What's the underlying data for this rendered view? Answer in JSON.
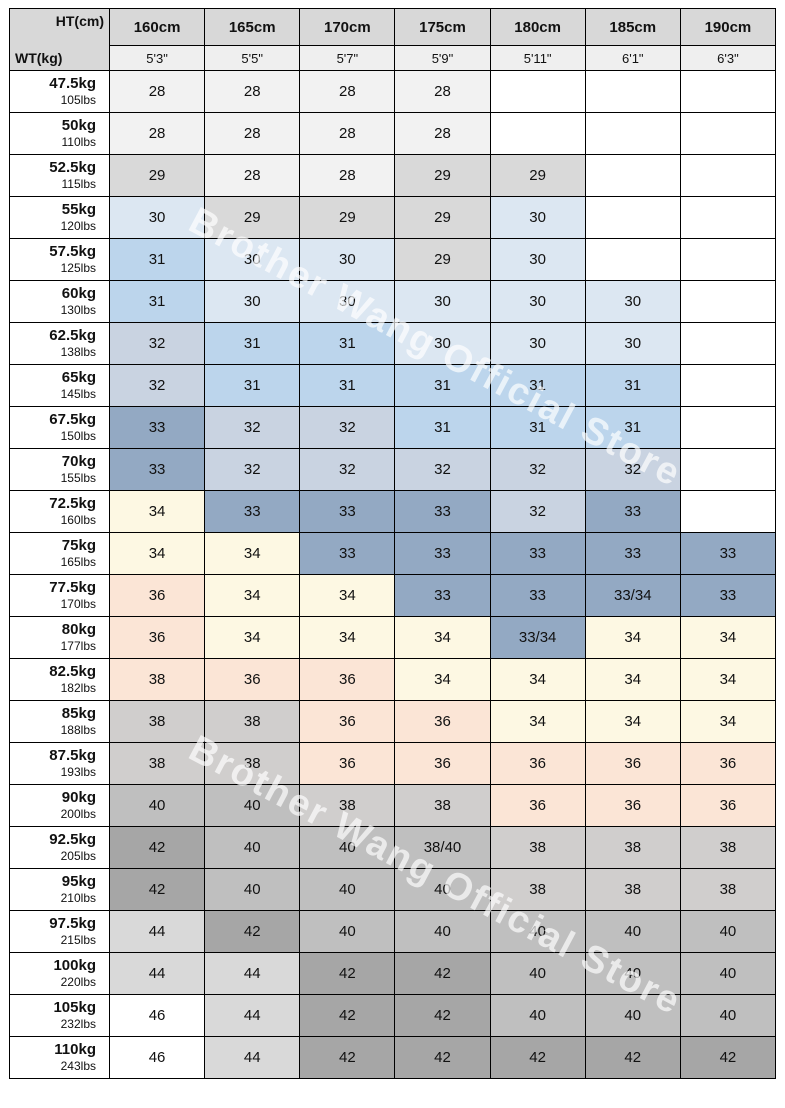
{
  "watermark": {
    "text": "Brother Wang Official Store"
  },
  "chart_data": {
    "type": "table",
    "corner": {
      "col_axis_label": "HT(cm)",
      "row_axis_label": "WT(kg)"
    },
    "columns": [
      {
        "cm": "160cm",
        "ft": "5'3\""
      },
      {
        "cm": "165cm",
        "ft": "5'5\""
      },
      {
        "cm": "170cm",
        "ft": "5'7\""
      },
      {
        "cm": "175cm",
        "ft": "5'9\""
      },
      {
        "cm": "180cm",
        "ft": "5'11\""
      },
      {
        "cm": "185cm",
        "ft": "6'1\""
      },
      {
        "cm": "190cm",
        "ft": "6'3\""
      }
    ],
    "rows": [
      {
        "kg": "47.5kg",
        "lbs": "105lbs",
        "cells": [
          {
            "v": "28",
            "bg": "#f2f2f2"
          },
          {
            "v": "28",
            "bg": "#f2f2f2"
          },
          {
            "v": "28",
            "bg": "#f2f2f2"
          },
          {
            "v": "28",
            "bg": "#f2f2f2"
          },
          {
            "v": "",
            "bg": "#ffffff"
          },
          {
            "v": "",
            "bg": "#ffffff"
          },
          {
            "v": "",
            "bg": "#ffffff"
          }
        ]
      },
      {
        "kg": "50kg",
        "lbs": "110lbs",
        "cells": [
          {
            "v": "28",
            "bg": "#f2f2f2"
          },
          {
            "v": "28",
            "bg": "#f2f2f2"
          },
          {
            "v": "28",
            "bg": "#f2f2f2"
          },
          {
            "v": "28",
            "bg": "#f2f2f2"
          },
          {
            "v": "",
            "bg": "#ffffff"
          },
          {
            "v": "",
            "bg": "#ffffff"
          },
          {
            "v": "",
            "bg": "#ffffff"
          }
        ]
      },
      {
        "kg": "52.5kg",
        "lbs": "115lbs",
        "cells": [
          {
            "v": "29",
            "bg": "#d9d9d9"
          },
          {
            "v": "28",
            "bg": "#f2f2f2"
          },
          {
            "v": "28",
            "bg": "#f2f2f2"
          },
          {
            "v": "29",
            "bg": "#d9d9d9"
          },
          {
            "v": "29",
            "bg": "#d9d9d9"
          },
          {
            "v": "",
            "bg": "#ffffff"
          },
          {
            "v": "",
            "bg": "#ffffff"
          }
        ]
      },
      {
        "kg": "55kg",
        "lbs": "120lbs",
        "cells": [
          {
            "v": "30",
            "bg": "#dce7f2"
          },
          {
            "v": "29",
            "bg": "#d9d9d9"
          },
          {
            "v": "29",
            "bg": "#d9d9d9"
          },
          {
            "v": "29",
            "bg": "#d9d9d9"
          },
          {
            "v": "30",
            "bg": "#dce7f2"
          },
          {
            "v": "",
            "bg": "#ffffff"
          },
          {
            "v": "",
            "bg": "#ffffff"
          }
        ]
      },
      {
        "kg": "57.5kg",
        "lbs": "125lbs",
        "cells": [
          {
            "v": "31",
            "bg": "#bcd5ec"
          },
          {
            "v": "30",
            "bg": "#dce7f2"
          },
          {
            "v": "30",
            "bg": "#dce7f2"
          },
          {
            "v": "29",
            "bg": "#d9d9d9"
          },
          {
            "v": "30",
            "bg": "#dce7f2"
          },
          {
            "v": "",
            "bg": "#ffffff"
          },
          {
            "v": "",
            "bg": "#ffffff"
          }
        ]
      },
      {
        "kg": "60kg",
        "lbs": "130lbs",
        "cells": [
          {
            "v": "31",
            "bg": "#bcd5ec"
          },
          {
            "v": "30",
            "bg": "#dce7f2"
          },
          {
            "v": "30",
            "bg": "#dce7f2"
          },
          {
            "v": "30",
            "bg": "#dce7f2"
          },
          {
            "v": "30",
            "bg": "#dce7f2"
          },
          {
            "v": "30",
            "bg": "#dce7f2"
          },
          {
            "v": "",
            "bg": "#ffffff"
          }
        ]
      },
      {
        "kg": "62.5kg",
        "lbs": "138lbs",
        "cells": [
          {
            "v": "32",
            "bg": "#c9d3e1"
          },
          {
            "v": "31",
            "bg": "#bcd5ec"
          },
          {
            "v": "31",
            "bg": "#bcd5ec"
          },
          {
            "v": "30",
            "bg": "#dce7f2"
          },
          {
            "v": "30",
            "bg": "#dce7f2"
          },
          {
            "v": "30",
            "bg": "#dce7f2"
          },
          {
            "v": "",
            "bg": "#ffffff"
          }
        ]
      },
      {
        "kg": "65kg",
        "lbs": "145lbs",
        "cells": [
          {
            "v": "32",
            "bg": "#c9d3e1"
          },
          {
            "v": "31",
            "bg": "#bcd5ec"
          },
          {
            "v": "31",
            "bg": "#bcd5ec"
          },
          {
            "v": "31",
            "bg": "#bcd5ec"
          },
          {
            "v": "31",
            "bg": "#bcd5ec"
          },
          {
            "v": "31",
            "bg": "#bcd5ec"
          },
          {
            "v": "",
            "bg": "#ffffff"
          }
        ]
      },
      {
        "kg": "67.5kg",
        "lbs": "150lbs",
        "cells": [
          {
            "v": "33",
            "bg": "#93a9c3"
          },
          {
            "v": "32",
            "bg": "#c9d3e1"
          },
          {
            "v": "32",
            "bg": "#c9d3e1"
          },
          {
            "v": "31",
            "bg": "#bcd5ec"
          },
          {
            "v": "31",
            "bg": "#bcd5ec"
          },
          {
            "v": "31",
            "bg": "#bcd5ec"
          },
          {
            "v": "",
            "bg": "#ffffff"
          }
        ]
      },
      {
        "kg": "70kg",
        "lbs": "155lbs",
        "cells": [
          {
            "v": "33",
            "bg": "#93a9c3"
          },
          {
            "v": "32",
            "bg": "#c9d3e1"
          },
          {
            "v": "32",
            "bg": "#c9d3e1"
          },
          {
            "v": "32",
            "bg": "#c9d3e1"
          },
          {
            "v": "32",
            "bg": "#c9d3e1"
          },
          {
            "v": "32",
            "bg": "#c9d3e1"
          },
          {
            "v": "",
            "bg": "#ffffff"
          }
        ]
      },
      {
        "kg": "72.5kg",
        "lbs": "160lbs",
        "cells": [
          {
            "v": "34",
            "bg": "#fdf8e3"
          },
          {
            "v": "33",
            "bg": "#93a9c3"
          },
          {
            "v": "33",
            "bg": "#93a9c3"
          },
          {
            "v": "33",
            "bg": "#93a9c3"
          },
          {
            "v": "32",
            "bg": "#c9d3e1"
          },
          {
            "v": "33",
            "bg": "#93a9c3"
          },
          {
            "v": "",
            "bg": "#ffffff"
          }
        ]
      },
      {
        "kg": "75kg",
        "lbs": "165lbs",
        "cells": [
          {
            "v": "34",
            "bg": "#fdf8e3"
          },
          {
            "v": "34",
            "bg": "#fdf8e3"
          },
          {
            "v": "33",
            "bg": "#93a9c3"
          },
          {
            "v": "33",
            "bg": "#93a9c3"
          },
          {
            "v": "33",
            "bg": "#93a9c3"
          },
          {
            "v": "33",
            "bg": "#93a9c3"
          },
          {
            "v": "33",
            "bg": "#93a9c3"
          }
        ]
      },
      {
        "kg": "77.5kg",
        "lbs": "170lbs",
        "cells": [
          {
            "v": "36",
            "bg": "#fbe5d6"
          },
          {
            "v": "34",
            "bg": "#fdf8e3"
          },
          {
            "v": "34",
            "bg": "#fdf8e3"
          },
          {
            "v": "33",
            "bg": "#93a9c3"
          },
          {
            "v": "33",
            "bg": "#93a9c3"
          },
          {
            "v": "33/34",
            "bg": "#93a9c3"
          },
          {
            "v": "33",
            "bg": "#93a9c3"
          }
        ]
      },
      {
        "kg": "80kg",
        "lbs": "177lbs",
        "cells": [
          {
            "v": "36",
            "bg": "#fbe5d6"
          },
          {
            "v": "34",
            "bg": "#fdf8e3"
          },
          {
            "v": "34",
            "bg": "#fdf8e3"
          },
          {
            "v": "34",
            "bg": "#fdf8e3"
          },
          {
            "v": "33/34",
            "bg": "#93a9c3"
          },
          {
            "v": "34",
            "bg": "#fdf8e3"
          },
          {
            "v": "34",
            "bg": "#fdf8e3"
          }
        ]
      },
      {
        "kg": "82.5kg",
        "lbs": "182lbs",
        "cells": [
          {
            "v": "38",
            "bg": "#fbe5d6"
          },
          {
            "v": "36",
            "bg": "#fbe5d6"
          },
          {
            "v": "36",
            "bg": "#fbe5d6"
          },
          {
            "v": "34",
            "bg": "#fdf8e3"
          },
          {
            "v": "34",
            "bg": "#fdf8e3"
          },
          {
            "v": "34",
            "bg": "#fdf8e3"
          },
          {
            "v": "34",
            "bg": "#fdf8e3"
          }
        ]
      },
      {
        "kg": "85kg",
        "lbs": "188lbs",
        "cells": [
          {
            "v": "38",
            "bg": "#d0cecd"
          },
          {
            "v": "38",
            "bg": "#d0cecd"
          },
          {
            "v": "36",
            "bg": "#fbe5d6"
          },
          {
            "v": "36",
            "bg": "#fbe5d6"
          },
          {
            "v": "34",
            "bg": "#fdf8e3"
          },
          {
            "v": "34",
            "bg": "#fdf8e3"
          },
          {
            "v": "34",
            "bg": "#fdf8e3"
          }
        ]
      },
      {
        "kg": "87.5kg",
        "lbs": "193lbs",
        "cells": [
          {
            "v": "38",
            "bg": "#d0cecd"
          },
          {
            "v": "38",
            "bg": "#d0cecd"
          },
          {
            "v": "36",
            "bg": "#fbe5d6"
          },
          {
            "v": "36",
            "bg": "#fbe5d6"
          },
          {
            "v": "36",
            "bg": "#fbe5d6"
          },
          {
            "v": "36",
            "bg": "#fbe5d6"
          },
          {
            "v": "36",
            "bg": "#fbe5d6"
          }
        ]
      },
      {
        "kg": "90kg",
        "lbs": "200lbs",
        "cells": [
          {
            "v": "40",
            "bg": "#bfbfbf"
          },
          {
            "v": "40",
            "bg": "#bfbfbf"
          },
          {
            "v": "38",
            "bg": "#d0cecd"
          },
          {
            "v": "38",
            "bg": "#d0cecd"
          },
          {
            "v": "36",
            "bg": "#fbe5d6"
          },
          {
            "v": "36",
            "bg": "#fbe5d6"
          },
          {
            "v": "36",
            "bg": "#fbe5d6"
          }
        ]
      },
      {
        "kg": "92.5kg",
        "lbs": "205lbs",
        "cells": [
          {
            "v": "42",
            "bg": "#a6a6a6"
          },
          {
            "v": "40",
            "bg": "#bfbfbf"
          },
          {
            "v": "40",
            "bg": "#bfbfbf"
          },
          {
            "v": "38/40",
            "bg": "#bfbfbf"
          },
          {
            "v": "38",
            "bg": "#d0cecd"
          },
          {
            "v": "38",
            "bg": "#d0cecd"
          },
          {
            "v": "38",
            "bg": "#d0cecd"
          }
        ]
      },
      {
        "kg": "95kg",
        "lbs": "210lbs",
        "cells": [
          {
            "v": "42",
            "bg": "#a6a6a6"
          },
          {
            "v": "40",
            "bg": "#bfbfbf"
          },
          {
            "v": "40",
            "bg": "#bfbfbf"
          },
          {
            "v": "40",
            "bg": "#bfbfbf"
          },
          {
            "v": "38",
            "bg": "#d0cecd"
          },
          {
            "v": "38",
            "bg": "#d0cecd"
          },
          {
            "v": "38",
            "bg": "#d0cecd"
          }
        ]
      },
      {
        "kg": "97.5kg",
        "lbs": "215lbs",
        "cells": [
          {
            "v": "44",
            "bg": "#d9d9d9"
          },
          {
            "v": "42",
            "bg": "#a6a6a6"
          },
          {
            "v": "40",
            "bg": "#bfbfbf"
          },
          {
            "v": "40",
            "bg": "#bfbfbf"
          },
          {
            "v": "40",
            "bg": "#bfbfbf"
          },
          {
            "v": "40",
            "bg": "#bfbfbf"
          },
          {
            "v": "40",
            "bg": "#bfbfbf"
          }
        ]
      },
      {
        "kg": "100kg",
        "lbs": "220lbs",
        "cells": [
          {
            "v": "44",
            "bg": "#d9d9d9"
          },
          {
            "v": "44",
            "bg": "#d9d9d9"
          },
          {
            "v": "42",
            "bg": "#a6a6a6"
          },
          {
            "v": "42",
            "bg": "#a6a6a6"
          },
          {
            "v": "40",
            "bg": "#bfbfbf"
          },
          {
            "v": "40",
            "bg": "#bfbfbf"
          },
          {
            "v": "40",
            "bg": "#bfbfbf"
          }
        ]
      },
      {
        "kg": "105kg",
        "lbs": "232lbs",
        "cells": [
          {
            "v": "46",
            "bg": "#ffffff"
          },
          {
            "v": "44",
            "bg": "#d9d9d9"
          },
          {
            "v": "42",
            "bg": "#a6a6a6"
          },
          {
            "v": "42",
            "bg": "#a6a6a6"
          },
          {
            "v": "40",
            "bg": "#bfbfbf"
          },
          {
            "v": "40",
            "bg": "#bfbfbf"
          },
          {
            "v": "40",
            "bg": "#bfbfbf"
          }
        ]
      },
      {
        "kg": "110kg",
        "lbs": "243lbs",
        "cells": [
          {
            "v": "46",
            "bg": "#ffffff"
          },
          {
            "v": "44",
            "bg": "#d9d9d9"
          },
          {
            "v": "42",
            "bg": "#a6a6a6"
          },
          {
            "v": "42",
            "bg": "#a6a6a6"
          },
          {
            "v": "42",
            "bg": "#a6a6a6"
          },
          {
            "v": "42",
            "bg": "#a6a6a6"
          },
          {
            "v": "42",
            "bg": "#a6a6a6"
          }
        ]
      }
    ]
  }
}
